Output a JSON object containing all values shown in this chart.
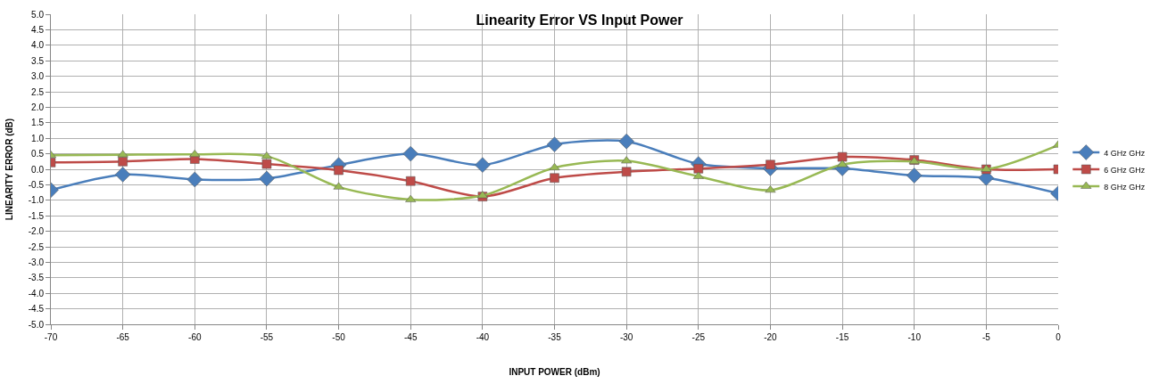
{
  "chart_data": {
    "type": "line",
    "title": "Linearity Error VS Input Power",
    "xlabel": "INPUT POWER (dBm)",
    "ylabel": "LINEARITY ERROR (dB)",
    "x": [
      -70,
      -65,
      -60,
      -55,
      -50,
      -45,
      -40,
      -35,
      -30,
      -25,
      -20,
      -15,
      -10,
      -5,
      0
    ],
    "series": [
      {
        "name": "4 GHz GHz",
        "color": "#4a7ebb",
        "marker": "diamond",
        "values": [
          -0.67,
          -0.17,
          -0.33,
          -0.3,
          0.14,
          0.5,
          0.14,
          0.8,
          0.9,
          0.17,
          0.03,
          0.03,
          -0.2,
          -0.28,
          -0.78
        ]
      },
      {
        "name": "6 GHz GHz",
        "color": "#be4b48",
        "marker": "square",
        "values": [
          0.22,
          0.25,
          0.33,
          0.17,
          -0.03,
          -0.38,
          -0.88,
          -0.28,
          -0.08,
          0.02,
          0.15,
          0.4,
          0.3,
          0.0,
          0.0
        ]
      },
      {
        "name": "8 GHz GHz",
        "color": "#98b954",
        "marker": "triangle",
        "values": [
          0.45,
          0.47,
          0.48,
          0.42,
          -0.57,
          -0.98,
          -0.85,
          0.05,
          0.27,
          -0.23,
          -0.67,
          0.15,
          0.25,
          0.0,
          0.78
        ]
      }
    ],
    "xlim": [
      -70,
      0
    ],
    "xticks": [
      -70,
      -65,
      -60,
      -55,
      -50,
      -45,
      -40,
      -35,
      -30,
      -25,
      -20,
      -15,
      -10,
      -5,
      0
    ],
    "ylim": [
      -5,
      5
    ],
    "yticks": [
      {
        "value": -5,
        "label": "-5.0"
      },
      {
        "value": -4.5,
        "label": "-4.5"
      },
      {
        "value": -4,
        "label": "-4.0"
      },
      {
        "value": -3.5,
        "label": "-3.5"
      },
      {
        "value": -3,
        "label": "-3.0"
      },
      {
        "value": -2.5,
        "label": "-2.5"
      },
      {
        "value": -2,
        "label": "-2.0"
      },
      {
        "value": -1.5,
        "label": "-1.5"
      },
      {
        "value": -1,
        "label": "-1.0"
      },
      {
        "value": -0.5,
        "label": "-0.5"
      },
      {
        "value": 0,
        "label": "0.0"
      },
      {
        "value": 0.5,
        "label": "0.5"
      },
      {
        "value": 1,
        "label": "1.0"
      },
      {
        "value": 1.5,
        "label": "1.5"
      },
      {
        "value": 2,
        "label": "2.0"
      },
      {
        "value": 2.5,
        "label": "2.5"
      },
      {
        "value": 3,
        "label": "3.0"
      },
      {
        "value": 3.5,
        "label": "3.5"
      },
      {
        "value": 4,
        "label": "4.0"
      },
      {
        "value": 4.5,
        "label": "4.5"
      },
      {
        "value": 5,
        "label": "5.0"
      }
    ],
    "grid": true,
    "legend": "right",
    "line_style": "solid"
  }
}
